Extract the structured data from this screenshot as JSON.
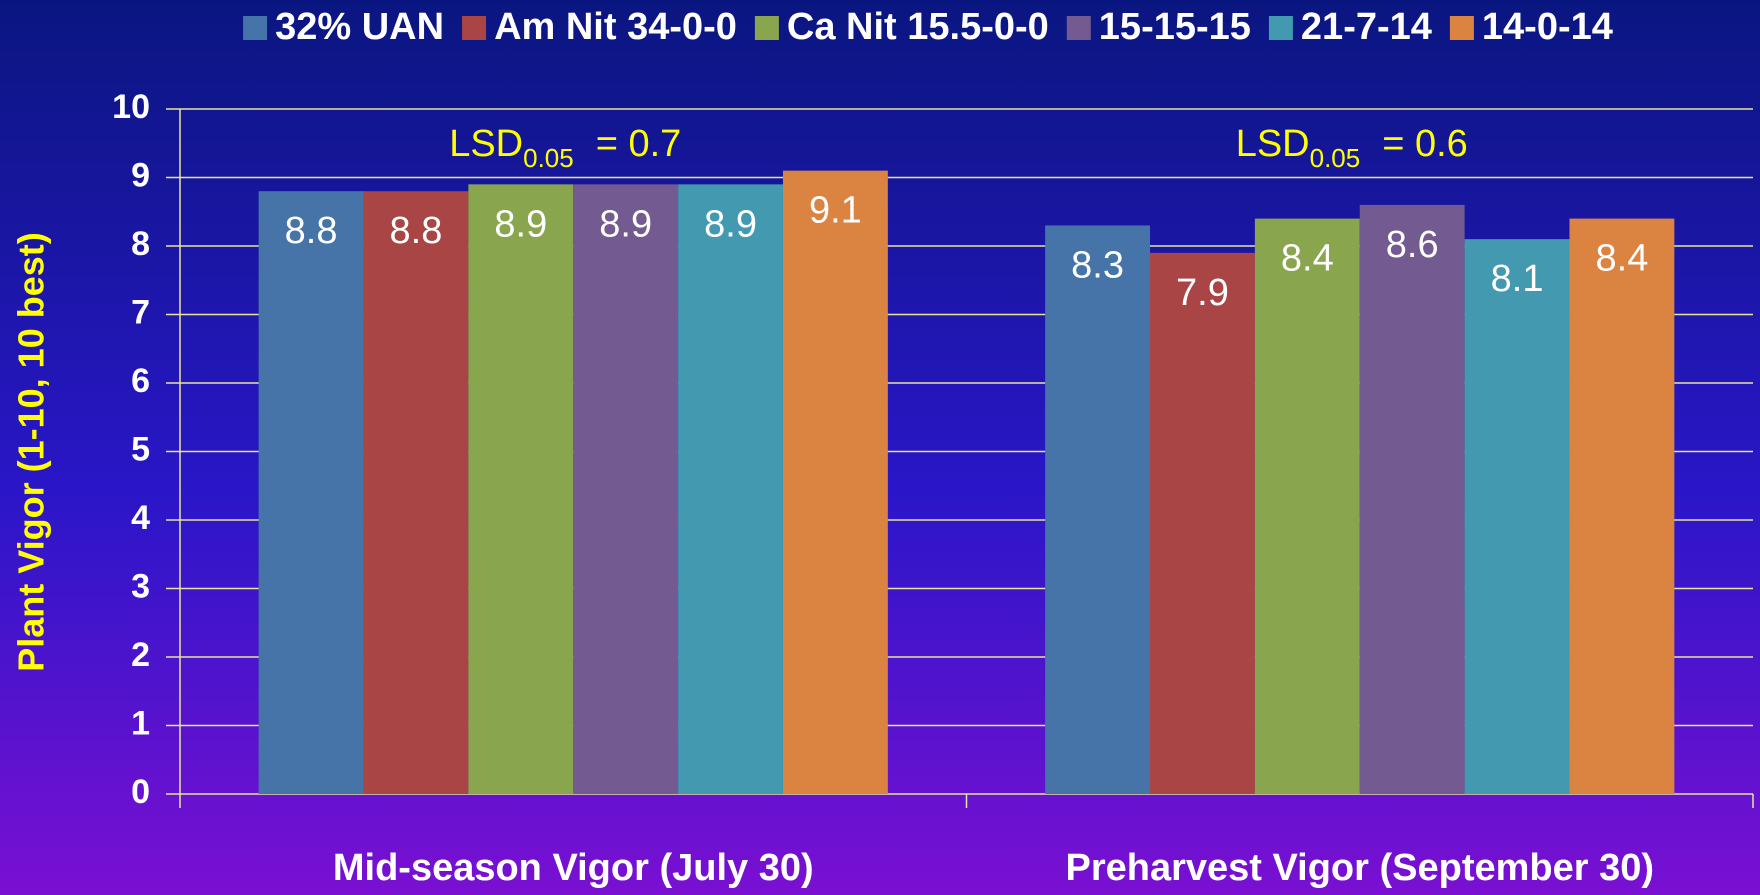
{
  "chart_data": {
    "type": "bar",
    "y_label": "Plant Vigor (1-10, 10 best)",
    "categories": [
      "Mid-season Vigor (July 30)",
      "Preharvest Vigor (September 30)"
    ],
    "series": [
      {
        "name": "32% UAN",
        "color": "#4674a8",
        "values": [
          8.8,
          8.3
        ]
      },
      {
        "name": "Am Nit 34-0-0",
        "color": "#a94545",
        "values": [
          8.8,
          7.9
        ]
      },
      {
        "name": "Ca Nit 15.5-0-0",
        "color": "#89a54e",
        "values": [
          8.9,
          8.4
        ]
      },
      {
        "name": "15-15-15",
        "color": "#735a91",
        "values": [
          8.9,
          8.6
        ]
      },
      {
        "name": "21-7-14",
        "color": "#4299b0",
        "values": [
          8.9,
          8.1
        ]
      },
      {
        "name": "14-0-14",
        "color": "#db8340",
        "values": [
          9.1,
          8.4
        ]
      }
    ],
    "annotations": [
      {
        "text": "LSD",
        "sub": "0.05",
        "rest": "= 0.7"
      },
      {
        "text": "LSD",
        "sub": "0.05",
        "rest": "= 0.6"
      }
    ],
    "ylim": [
      0,
      10
    ],
    "yticks": [
      0,
      1,
      2,
      3,
      4,
      5,
      6,
      7,
      8,
      9,
      10
    ],
    "grid": true,
    "legend": "top"
  }
}
